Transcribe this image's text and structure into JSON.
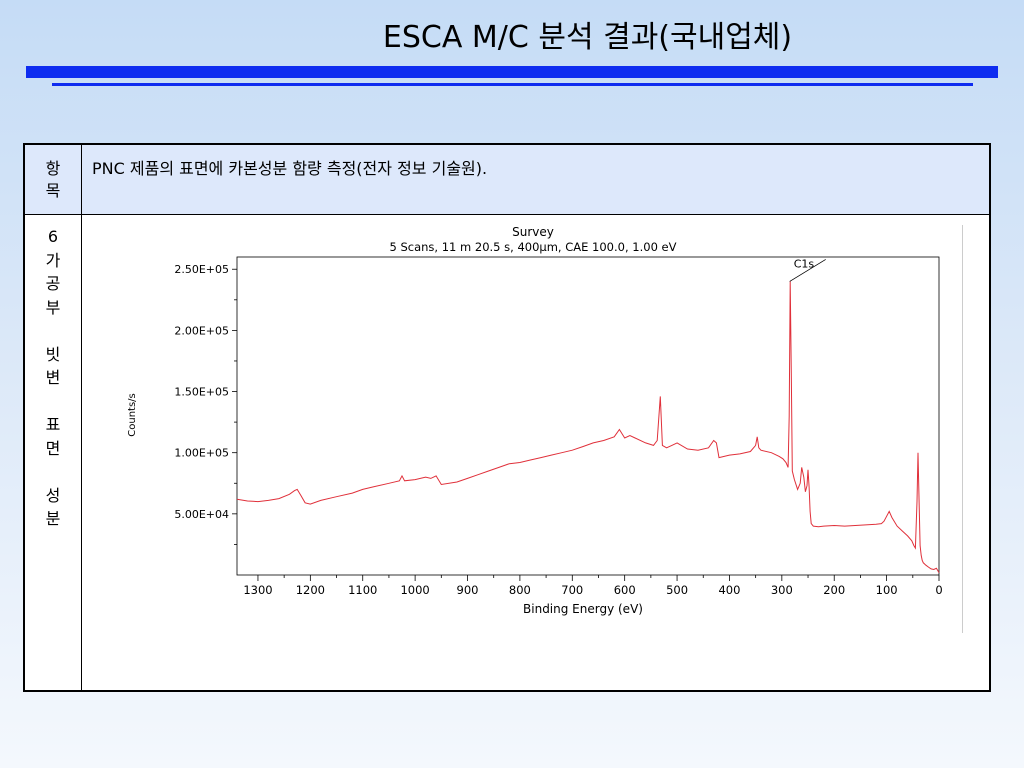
{
  "slide": {
    "title": "ESCA M/C 분석 결과(국내업체)"
  },
  "table": {
    "header_col": "항\n목",
    "header_desc": "PNC 제품의 표면에 카본성분 함량 측정(전자 정보 기술원).",
    "row_label": "6\n가\n공\n부\n\n빗\n변\n\n표\n면\n\n성\n분"
  },
  "chart_data": {
    "type": "line",
    "title": "Survey",
    "subtitle": "5 Scans,  11 m 20.5 s,  400µm,  CAE 100.0,  1.00 eV",
    "xlabel": "Binding Energy (eV)",
    "ylabel": "Counts/s",
    "x_reversed": true,
    "xlim": [
      1340,
      0
    ],
    "ylim": [
      0,
      260000.0
    ],
    "xticks": [
      1300,
      1200,
      1100,
      1000,
      900,
      800,
      700,
      600,
      500,
      400,
      300,
      200,
      100,
      0
    ],
    "yticks": [
      50000,
      100000,
      150000,
      200000,
      250000
    ],
    "ytick_labels": [
      "5.00E+04",
      "1.00E+05",
      "1.50E+05",
      "2.00E+05",
      "2.50E+05"
    ],
    "annotations": [
      {
        "text": "C1s",
        "x": 285,
        "y": 240000
      }
    ],
    "series": [
      {
        "color": "#e0303a",
        "x": [
          1340,
          1320,
          1300,
          1280,
          1260,
          1240,
          1230,
          1225,
          1218,
          1210,
          1200,
          1180,
          1150,
          1120,
          1100,
          1080,
          1050,
          1030,
          1025,
          1020,
          1000,
          980,
          970,
          960,
          950,
          920,
          900,
          880,
          860,
          840,
          820,
          800,
          780,
          760,
          740,
          720,
          700,
          680,
          660,
          640,
          620,
          610,
          600,
          590,
          580,
          560,
          545,
          538,
          532,
          528,
          520,
          510,
          500,
          480,
          460,
          440,
          430,
          425,
          420,
          410,
          400,
          380,
          360,
          350,
          347,
          344,
          340,
          320,
          305,
          298,
          292,
          288,
          286,
          284,
          282,
          280,
          276,
          270,
          265,
          262,
          258,
          255,
          252,
          250,
          248,
          246,
          244,
          240,
          230,
          220,
          200,
          180,
          160,
          140,
          120,
          110,
          105,
          100,
          95,
          90,
          80,
          70,
          60,
          52,
          48,
          45,
          42,
          40,
          38,
          36,
          34,
          32,
          30,
          25,
          20,
          15,
          10,
          5,
          0
        ],
        "y": [
          62000,
          60500,
          60000,
          61000,
          62500,
          66000,
          69000,
          70000,
          65000,
          59000,
          58000,
          61000,
          64000,
          67000,
          70000,
          72000,
          75000,
          77000,
          81000,
          77000,
          78000,
          80000,
          79000,
          81000,
          74000,
          76000,
          79000,
          82000,
          85000,
          88000,
          91000,
          92000,
          94000,
          96000,
          98000,
          100000,
          102000,
          105000,
          108000,
          110000,
          113000,
          119000,
          112000,
          114000,
          112000,
          108000,
          106000,
          110000,
          146000,
          106000,
          104000,
          106000,
          108000,
          103000,
          102000,
          104000,
          110000,
          108000,
          96000,
          97000,
          98000,
          99000,
          101000,
          106000,
          113000,
          104000,
          102000,
          100000,
          97000,
          95000,
          92000,
          88000,
          130000,
          240000,
          165000,
          85000,
          78000,
          70000,
          75000,
          88000,
          80000,
          68000,
          73000,
          86000,
          72000,
          52000,
          42000,
          40000,
          39500,
          40000,
          40500,
          40000,
          40500,
          41000,
          41500,
          42000,
          44000,
          48000,
          52000,
          47000,
          40000,
          36000,
          32000,
          28000,
          24000,
          22000,
          60000,
          100000,
          60000,
          24000,
          16000,
          12000,
          10000,
          8000,
          6500,
          5000,
          4500,
          5500,
          2000
        ]
      }
    ]
  }
}
